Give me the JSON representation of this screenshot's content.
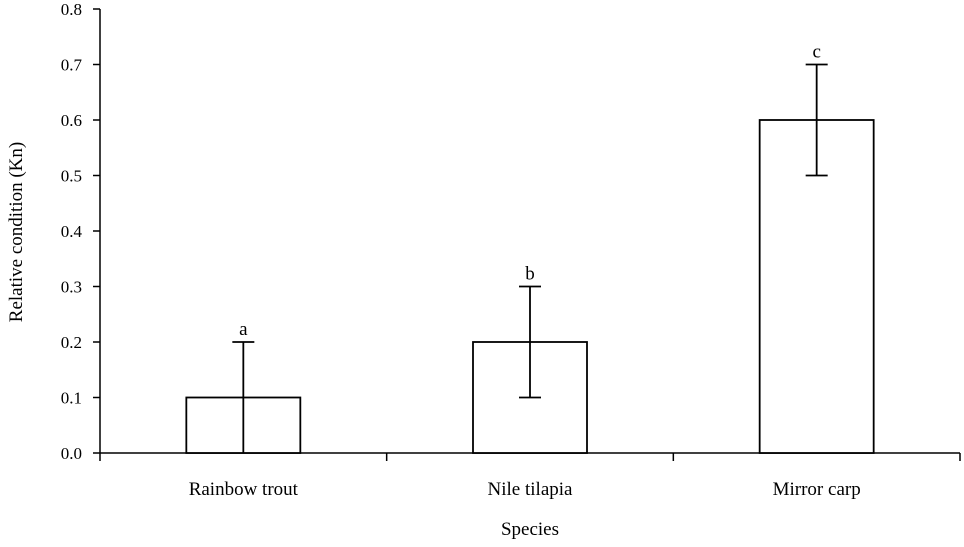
{
  "chart_data": {
    "type": "bar",
    "title": "",
    "xlabel": "Species",
    "ylabel": "Relative condition (Kn)",
    "categories": [
      "Rainbow trout",
      "Nile tilapia",
      "Mirror carp"
    ],
    "values": [
      0.1,
      0.2,
      0.6
    ],
    "error_bars": [
      0.1,
      0.1,
      0.1
    ],
    "significance_letters": [
      "a",
      "b",
      "c"
    ],
    "ylim": [
      0,
      0.8
    ],
    "yticks": [
      "0.0",
      "0.1",
      "0.2",
      "0.3",
      "0.4",
      "0.5",
      "0.6",
      "0.7",
      "0.8"
    ],
    "grid": false,
    "legend": "none",
    "bar_fill": "#ffffff",
    "bar_stroke": "#000000"
  }
}
